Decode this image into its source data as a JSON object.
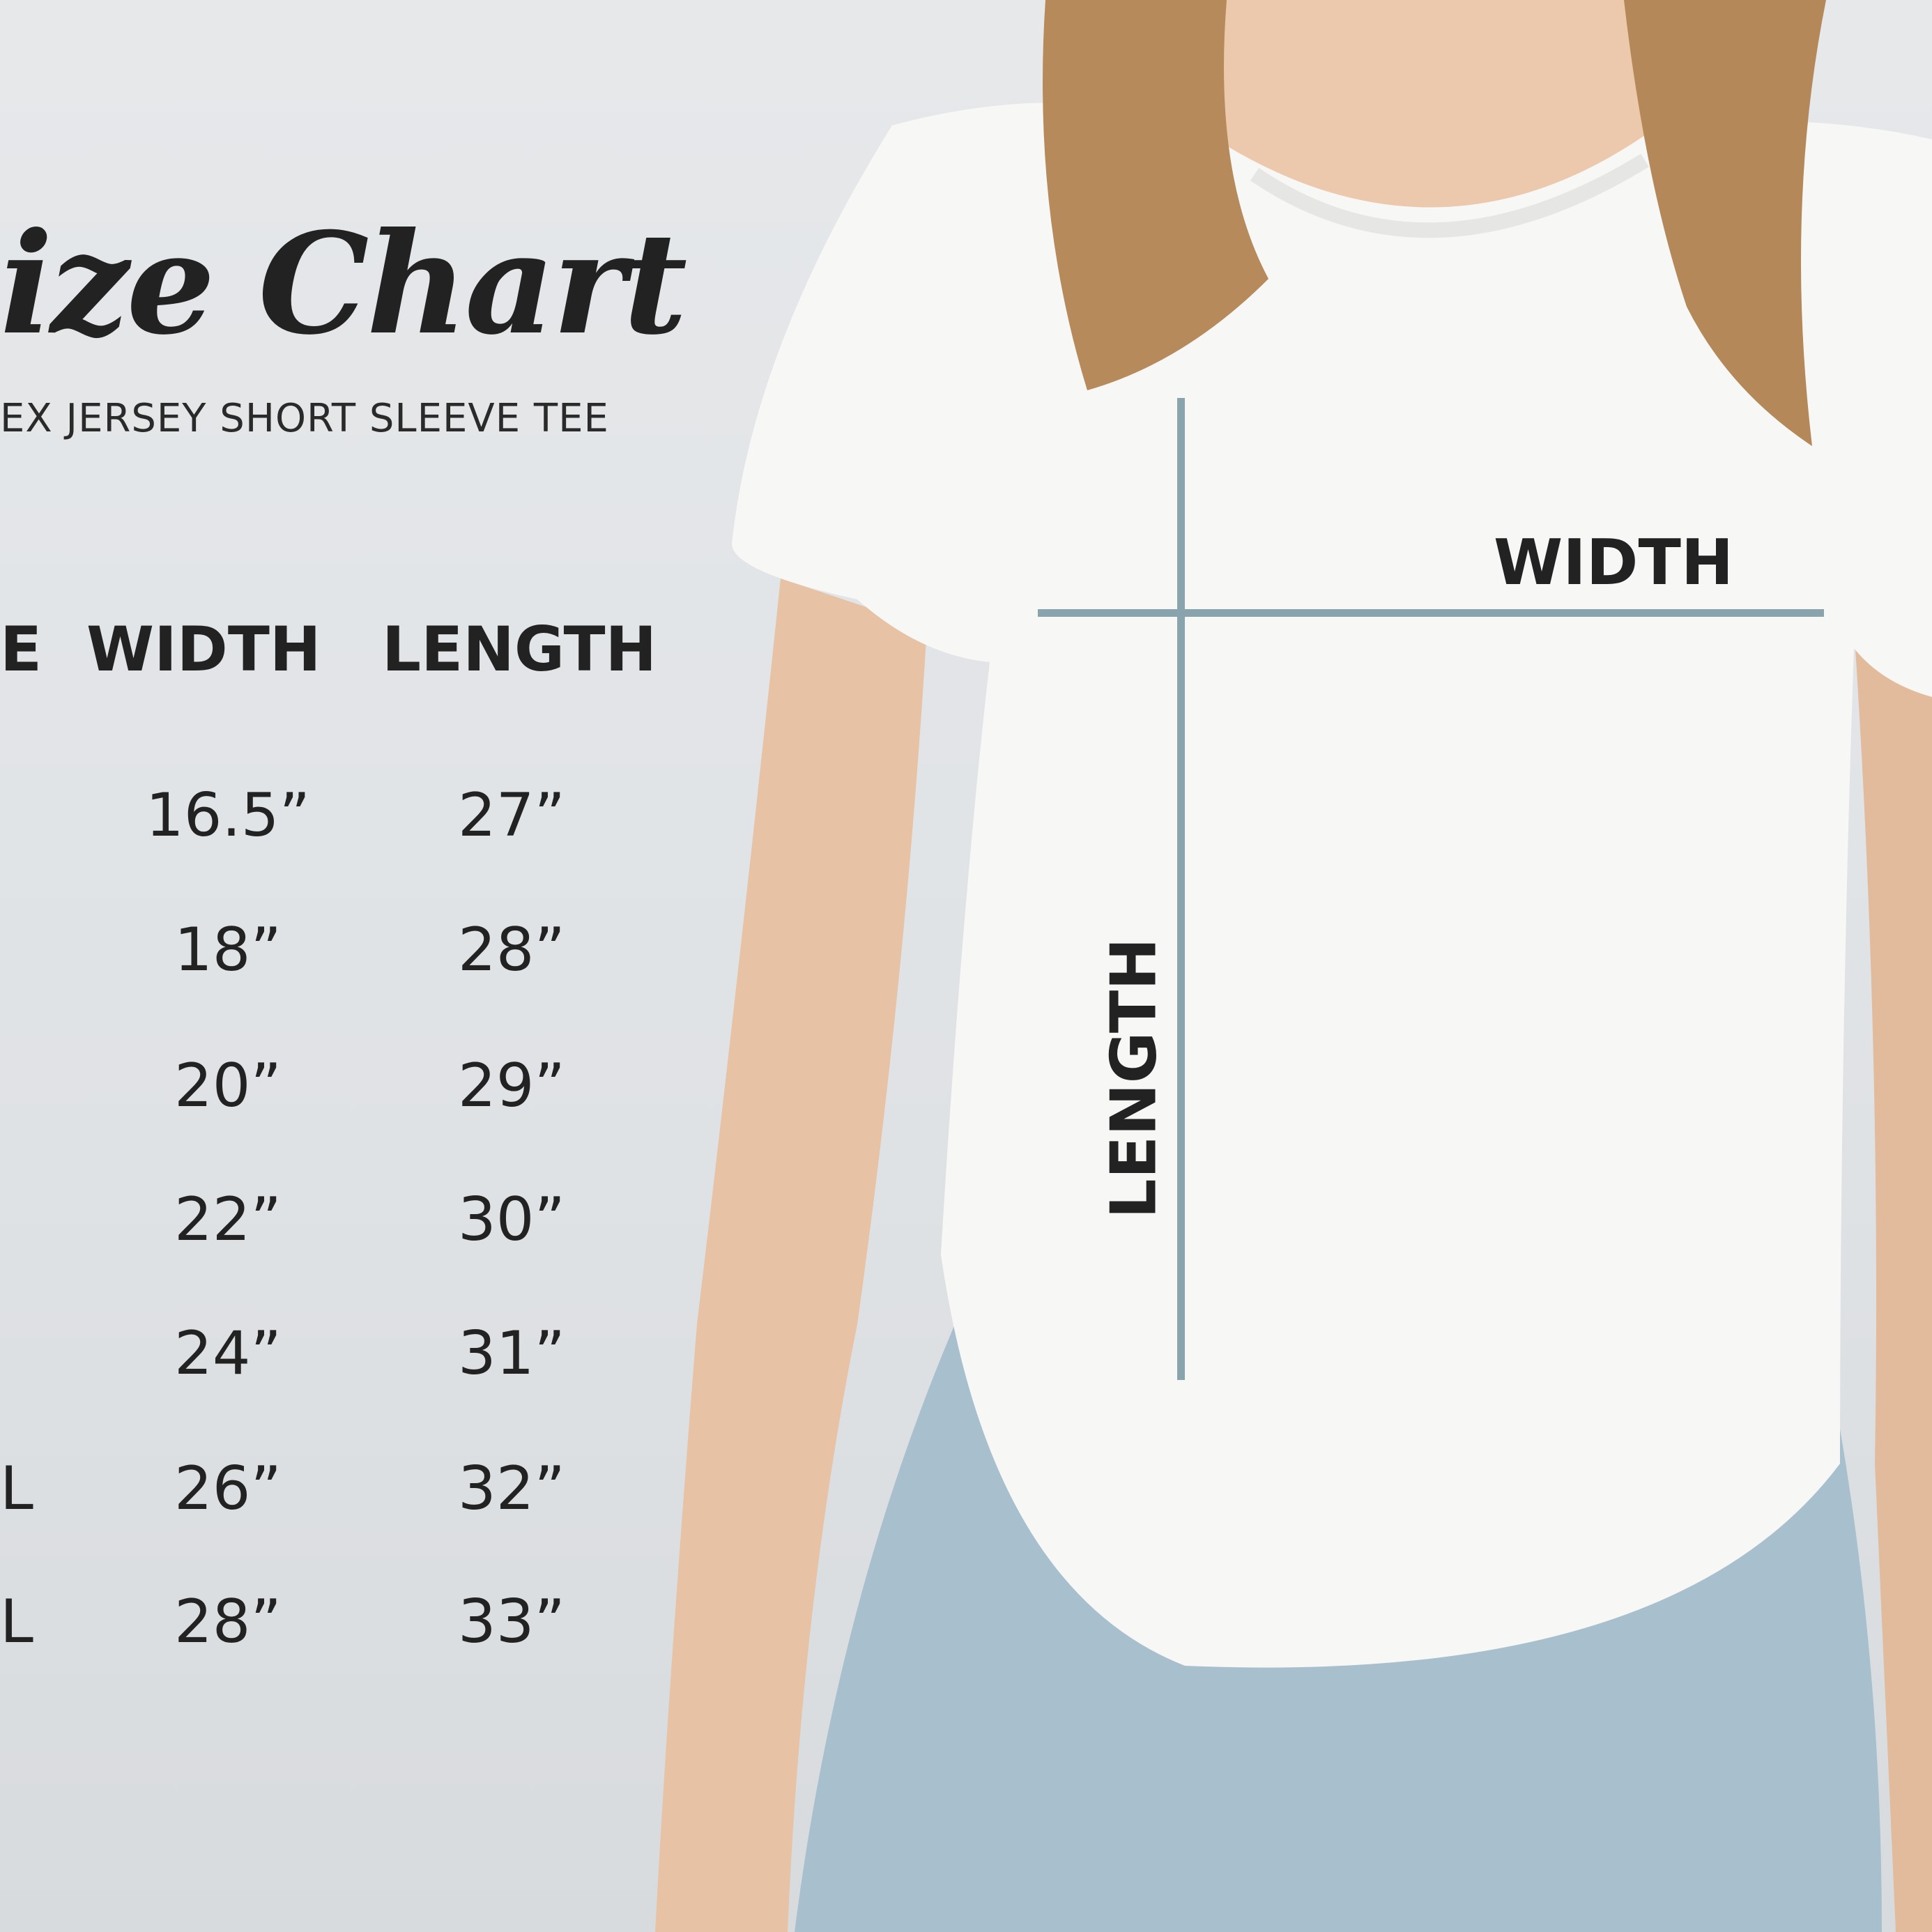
{
  "title": "ize Chart",
  "subtitle": "EX JERSEY SHORT SLEEVE TEE",
  "chart_data": {
    "type": "table",
    "columns": [
      "E",
      "WIDTH",
      "LENGTH"
    ],
    "rows": [
      {
        "size": "",
        "width": "16.5”",
        "length": "27”"
      },
      {
        "size": "",
        "width": "18”",
        "length": "28”"
      },
      {
        "size": "",
        "width": "20”",
        "length": "29”"
      },
      {
        "size": "",
        "width": "22”",
        "length": "30”"
      },
      {
        "size": "",
        "width": "24”",
        "length": "31”"
      },
      {
        "size": "L",
        "width": "26”",
        "length": "32”"
      },
      {
        "size": "L",
        "width": "28”",
        "length": "33”"
      }
    ]
  },
  "diagram": {
    "width_label": "WIDTH",
    "length_label": "LENGTH",
    "line_color": "#8aa4ad"
  }
}
